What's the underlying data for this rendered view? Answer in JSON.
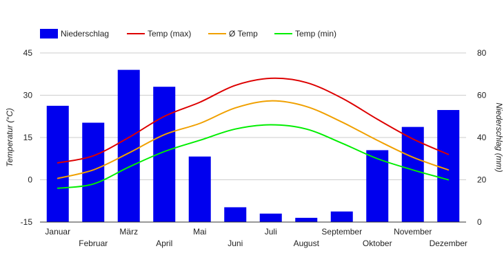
{
  "chart_data": {
    "type": "bar",
    "categories": [
      "Januar",
      "Februar",
      "März",
      "April",
      "Mai",
      "Juni",
      "Juli",
      "August",
      "September",
      "Oktober",
      "November",
      "Dezember"
    ],
    "series": [
      {
        "name": "Niederschlag",
        "type": "bar",
        "axis": "right",
        "color": "#0000ee",
        "values": [
          55,
          47,
          72,
          64,
          31,
          7,
          4,
          2,
          5,
          34,
          45,
          53
        ]
      },
      {
        "name": "Temp (max)",
        "type": "line",
        "axis": "left",
        "color": "#dd0000",
        "values": [
          6,
          8.5,
          15,
          22.5,
          27.5,
          33.5,
          36,
          34.5,
          29,
          21.5,
          14.5,
          9
        ]
      },
      {
        "name": "Ø Temp",
        "type": "line",
        "axis": "left",
        "color": "#f0a000",
        "values": [
          0.5,
          3.5,
          9.5,
          16,
          20,
          25.5,
          28,
          26,
          20.5,
          14,
          8,
          3.5
        ]
      },
      {
        "name": "Temp (min)",
        "type": "line",
        "axis": "left",
        "color": "#00ee00",
        "values": [
          -3,
          -1.5,
          4.5,
          10,
          14,
          18,
          19.5,
          18,
          13,
          7.5,
          3.5,
          0
        ]
      }
    ],
    "yaxis_left": {
      "label": "Temperatur (°C)",
      "range": [
        -15,
        45
      ],
      "ticks": [
        -15,
        0,
        15,
        30,
        45
      ]
    },
    "yaxis_right": {
      "label": "Niederschlag (mm)",
      "range": [
        0,
        80
      ],
      "ticks": [
        0,
        20,
        40,
        60,
        80
      ]
    },
    "grid": true,
    "legend_position": "top-left"
  }
}
